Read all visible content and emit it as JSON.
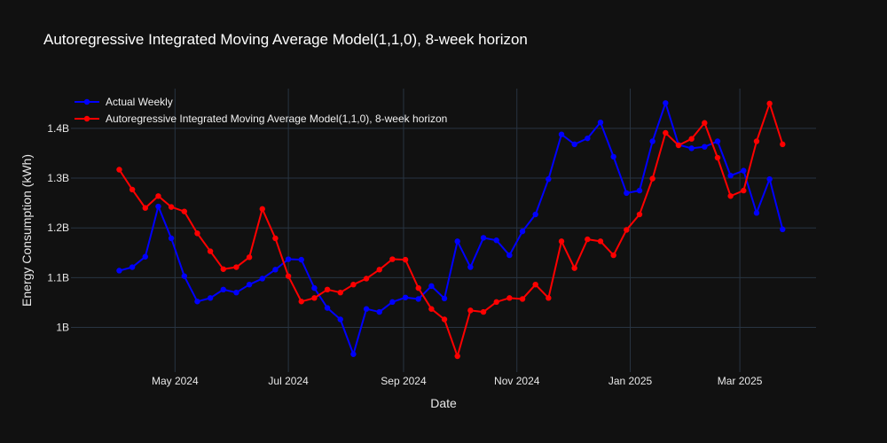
{
  "chart_data": {
    "type": "line",
    "title": "Autoregressive Integrated Moving Average Model(1,1,0), 8-week horizon",
    "xlabel": "Date",
    "ylabel": "Energy Consumption (kWh)",
    "x_range": [
      "2024-03-06",
      "2025-04-11"
    ],
    "ylim": [
      0.91,
      1.48
    ],
    "grid": true,
    "legend_position": "top-left",
    "x_tick_labels": [
      {
        "date": "2024-05-01",
        "label": "May 2024"
      },
      {
        "date": "2024-07-01",
        "label": "Jul 2024"
      },
      {
        "date": "2024-09-01",
        "label": "Sep 2024"
      },
      {
        "date": "2024-11-01",
        "label": "Nov 2024"
      },
      {
        "date": "2025-01-01",
        "label": "Jan 2025"
      },
      {
        "date": "2025-03-01",
        "label": "Mar 2025"
      }
    ],
    "y_tick_labels": [
      {
        "value": 1.0,
        "label": "1B"
      },
      {
        "value": 1.1,
        "label": "1.1B"
      },
      {
        "value": 1.2,
        "label": "1.2B"
      },
      {
        "value": 1.3,
        "label": "1.3B"
      },
      {
        "value": 1.4,
        "label": "1.4B"
      }
    ],
    "x": [
      "2024-04-01",
      "2024-04-08",
      "2024-04-15",
      "2024-04-22",
      "2024-04-29",
      "2024-05-06",
      "2024-05-13",
      "2024-05-20",
      "2024-05-27",
      "2024-06-03",
      "2024-06-10",
      "2024-06-17",
      "2024-06-24",
      "2024-07-01",
      "2024-07-08",
      "2024-07-15",
      "2024-07-22",
      "2024-07-29",
      "2024-08-05",
      "2024-08-12",
      "2024-08-19",
      "2024-08-26",
      "2024-09-02",
      "2024-09-09",
      "2024-09-16",
      "2024-09-23",
      "2024-09-30",
      "2024-10-07",
      "2024-10-14",
      "2024-10-21",
      "2024-10-28",
      "2024-11-04",
      "2024-11-11",
      "2024-11-18",
      "2024-11-25",
      "2024-12-02",
      "2024-12-09",
      "2024-12-16",
      "2024-12-23",
      "2024-12-30",
      "2025-01-06",
      "2025-01-13",
      "2025-01-20",
      "2025-01-27",
      "2025-02-03",
      "2025-02-10",
      "2025-02-17",
      "2025-02-24",
      "2025-03-03",
      "2025-03-10",
      "2025-03-17",
      "2025-03-24"
    ],
    "series": [
      {
        "name": "Actual Weekly",
        "color": "#0000ff",
        "values": [
          1.114,
          1.121,
          1.142,
          1.243,
          1.179,
          1.103,
          1.052,
          1.059,
          1.076,
          1.07,
          1.086,
          1.098,
          1.116,
          1.137,
          1.136,
          1.079,
          1.039,
          1.016,
          0.946,
          1.037,
          1.031,
          1.051,
          1.06,
          1.057,
          1.083,
          1.058,
          1.173,
          1.121,
          1.18,
          1.175,
          1.145,
          1.193,
          1.227,
          1.298,
          1.388,
          1.368,
          1.38,
          1.412,
          1.343,
          1.27,
          1.275,
          1.374,
          1.451,
          1.367,
          1.36,
          1.363,
          1.374,
          1.305,
          1.315,
          1.23,
          1.298,
          1.197
        ]
      },
      {
        "name": "Autoregressive Integrated Moving Average Model(1,1,0), 8-week horizon",
        "color": "#ff0000",
        "values": [
          1.317,
          1.277,
          1.24,
          1.264,
          1.242,
          1.233,
          1.189,
          1.153,
          1.117,
          1.121,
          1.141,
          1.238,
          1.179,
          1.103,
          1.052,
          1.059,
          1.076,
          1.07,
          1.086,
          1.098,
          1.116,
          1.137,
          1.136,
          1.079,
          1.037,
          1.016,
          0.942,
          1.034,
          1.031,
          1.051,
          1.059,
          1.057,
          1.086,
          1.059,
          1.173,
          1.119,
          1.177,
          1.173,
          1.145,
          1.196,
          1.227,
          1.299,
          1.391,
          1.366,
          1.379,
          1.411,
          1.341,
          1.264,
          1.275,
          1.374,
          1.45,
          1.368
        ]
      }
    ]
  }
}
